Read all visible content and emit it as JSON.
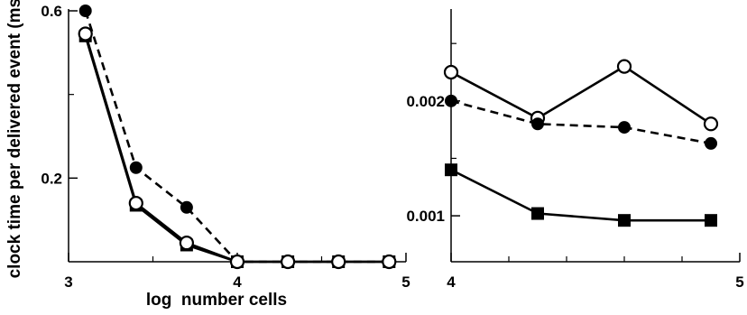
{
  "chart_data": [
    {
      "type": "line",
      "xlabel": "log  number cells",
      "ylabel": "clock time per delivered event (ms)",
      "xlim": [
        3,
        5
      ],
      "ylim": [
        0,
        0.6
      ],
      "x_ticks": [
        3,
        4,
        5
      ],
      "x_tick_labels": [
        "3",
        "4",
        "5"
      ],
      "y_ticks": [
        0.2,
        0.6
      ],
      "y_tick_labels": [
        "0.2",
        "0.6"
      ],
      "series": [
        {
          "marker": "filled-circle",
          "line": "dashed",
          "x": [
            3.1,
            3.4,
            3.7,
            4.0,
            4.3,
            4.6,
            4.9
          ],
          "y": [
            0.6,
            0.225,
            0.13,
            0.0,
            0.0,
            0.0,
            0.0
          ]
        },
        {
          "marker": "filled-square",
          "line": "solid",
          "x": [
            3.1,
            3.4,
            3.7,
            4.0,
            4.3,
            4.6,
            4.9
          ],
          "y": [
            0.54,
            0.135,
            0.04,
            0.0,
            0.0,
            0.0,
            0.0
          ]
        },
        {
          "marker": "open-circle",
          "line": "solid",
          "x": [
            3.1,
            3.4,
            3.7,
            4.0,
            4.3,
            4.6,
            4.9
          ],
          "y": [
            0.545,
            0.14,
            0.045,
            0.0,
            0.0,
            0.0,
            0.0
          ]
        }
      ]
    },
    {
      "type": "line",
      "xlim": [
        4,
        5
      ],
      "ylim": [
        0.0006,
        0.0028
      ],
      "x_ticks": [
        4,
        5
      ],
      "x_tick_labels": [
        "4",
        "5"
      ],
      "y_ticks": [
        0.001,
        0.002
      ],
      "y_tick_labels": [
        "0.001",
        "0.002"
      ],
      "series": [
        {
          "marker": "open-circle",
          "line": "solid",
          "x": [
            4.0,
            4.3,
            4.6,
            4.9
          ],
          "y": [
            0.00225,
            0.00185,
            0.0023,
            0.0018
          ]
        },
        {
          "marker": "filled-circle",
          "line": "dashed",
          "x": [
            4.0,
            4.3,
            4.6,
            4.9
          ],
          "y": [
            0.002,
            0.0018,
            0.00177,
            0.00163
          ]
        },
        {
          "marker": "filled-square",
          "line": "solid",
          "x": [
            4.0,
            4.3,
            4.6,
            4.9
          ],
          "y": [
            0.0014,
            0.00102,
            0.00096,
            0.00096
          ]
        }
      ]
    }
  ]
}
